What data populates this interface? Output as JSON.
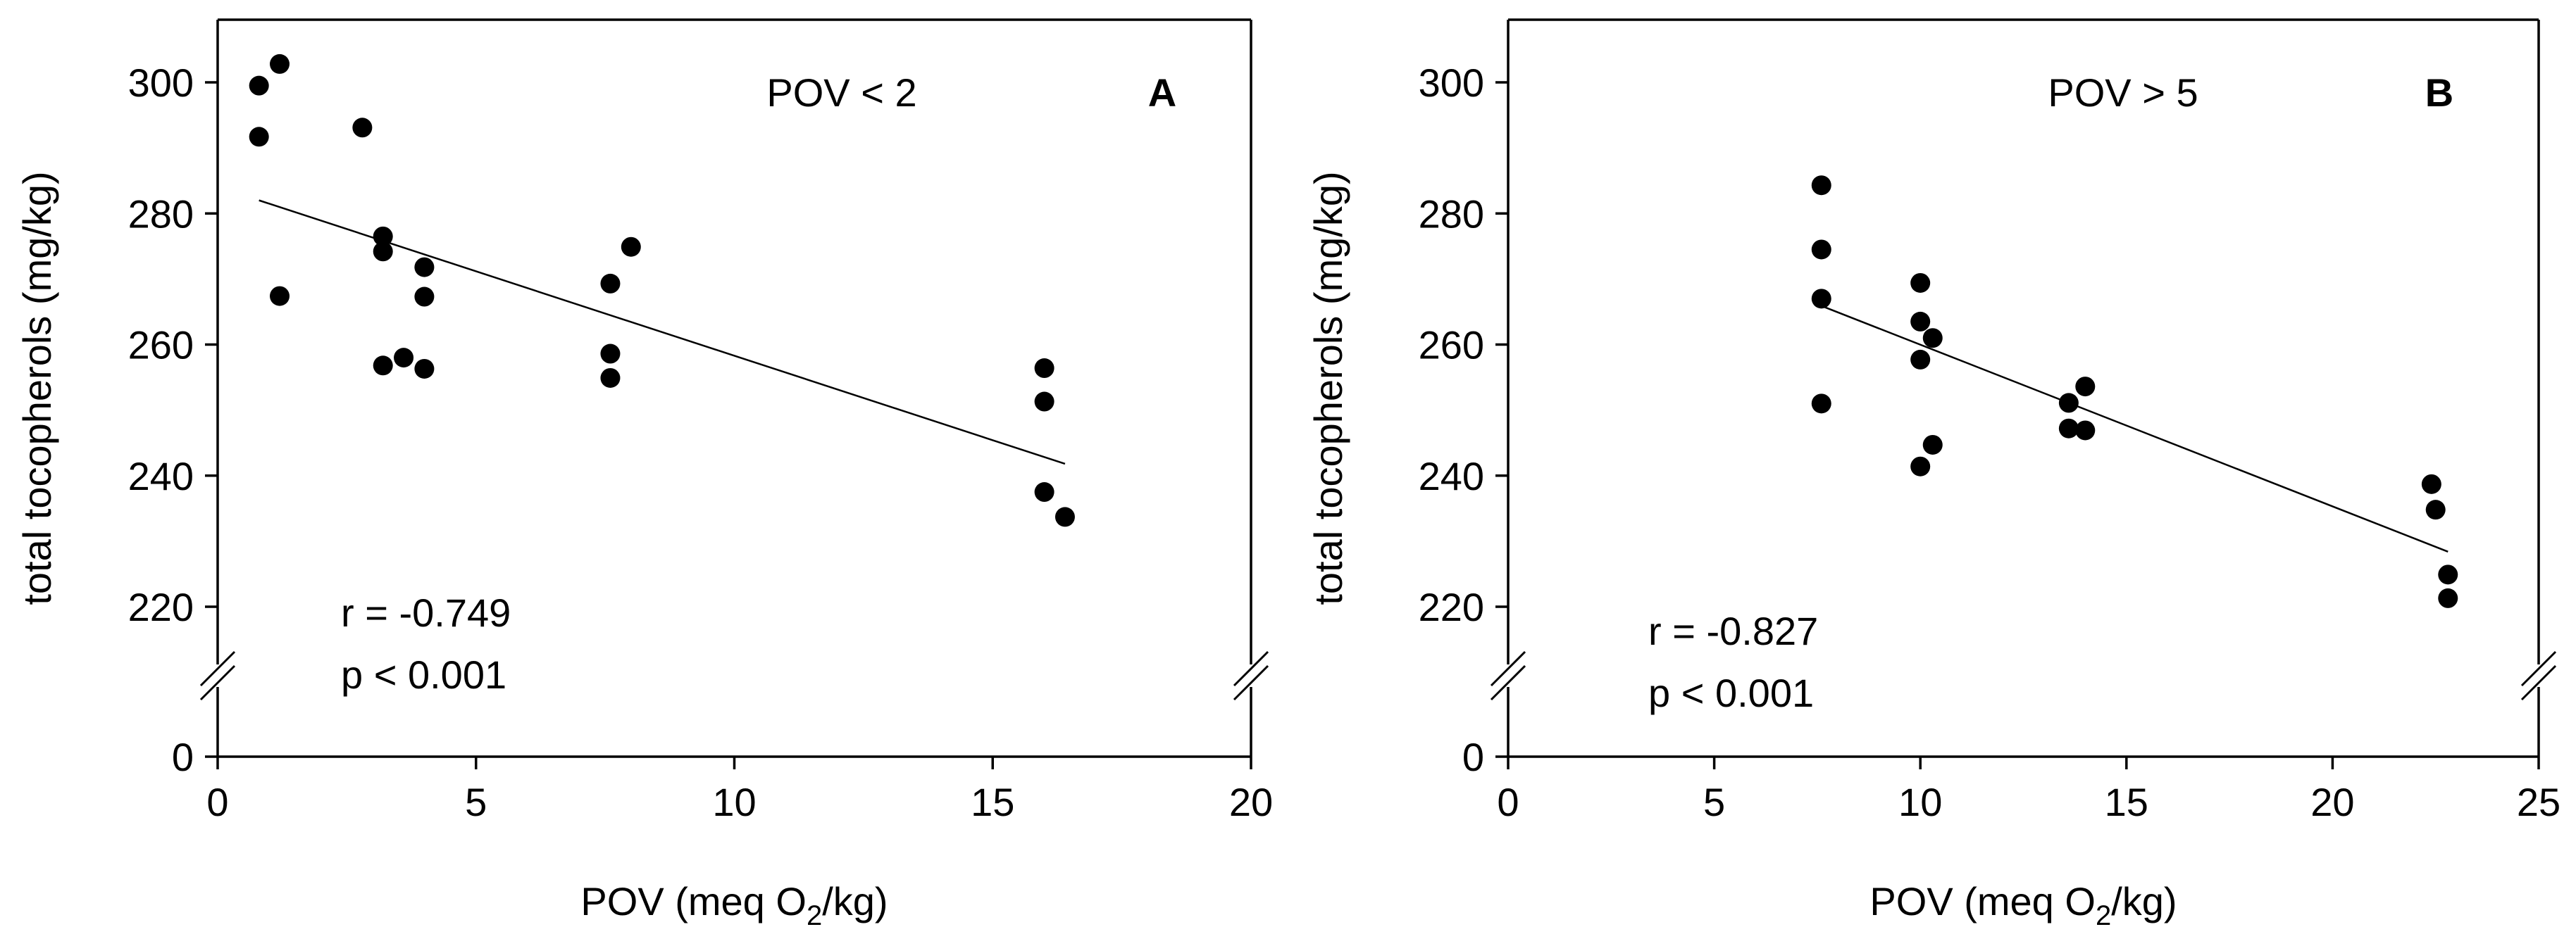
{
  "chart_data": [
    {
      "type": "scatter",
      "panel_label": "A",
      "condition": "POV < 2",
      "ylabel": "total tocopherols (mg/kg)",
      "xlabel": {
        "prefix": "POV (meq O",
        "subscript": "2",
        "suffix": "/kg)"
      },
      "xlim": [
        0,
        20
      ],
      "xticks": [
        "0",
        "5",
        "10",
        "15",
        "20"
      ],
      "ylim": [
        210,
        310
      ],
      "yticks": [
        "220",
        "240",
        "260",
        "280",
        "300"
      ],
      "yzero_label": "0",
      "stats": {
        "r": "r = -0.749",
        "p": "p < 0.001"
      },
      "points": [
        {
          "x": 0.8,
          "y": 299.5
        },
        {
          "x": 0.8,
          "y": 291.7
        },
        {
          "x": 1.2,
          "y": 302.8
        },
        {
          "x": 1.2,
          "y": 267.4
        },
        {
          "x": 2.8,
          "y": 293.1
        },
        {
          "x": 3.2,
          "y": 276.5
        },
        {
          "x": 3.2,
          "y": 274.2
        },
        {
          "x": 3.2,
          "y": 256.8
        },
        {
          "x": 3.6,
          "y": 258.0
        },
        {
          "x": 4.0,
          "y": 271.8
        },
        {
          "x": 4.0,
          "y": 267.3
        },
        {
          "x": 4.0,
          "y": 256.3
        },
        {
          "x": 7.6,
          "y": 269.3
        },
        {
          "x": 7.6,
          "y": 258.6
        },
        {
          "x": 7.6,
          "y": 254.9
        },
        {
          "x": 8.0,
          "y": 274.9
        },
        {
          "x": 16.0,
          "y": 256.4
        },
        {
          "x": 16.0,
          "y": 251.3
        },
        {
          "x": 16.0,
          "y": 237.5
        },
        {
          "x": 16.4,
          "y": 233.7
        }
      ],
      "fit": {
        "x1": 0.8,
        "y1": 282.0,
        "x2": 16.4,
        "y2": 241.8
      }
    },
    {
      "type": "scatter",
      "panel_label": "B",
      "condition": "POV > 5",
      "ylabel": "total tocopherols (mg/kg)",
      "xlabel": {
        "prefix": "POV (meq O",
        "subscript": "2",
        "suffix": "/kg)"
      },
      "xlim": [
        0,
        25
      ],
      "xticks": [
        "0",
        "5",
        "10",
        "15",
        "20",
        "25"
      ],
      "ylim": [
        210,
        310
      ],
      "yticks": [
        "220",
        "240",
        "260",
        "280",
        "300"
      ],
      "yzero_label": "0",
      "stats": {
        "r": "r = -0.827",
        "p": "p < 0.001"
      },
      "points": [
        {
          "x": 7.6,
          "y": 284.3
        },
        {
          "x": 7.6,
          "y": 274.5
        },
        {
          "x": 7.6,
          "y": 267.0
        },
        {
          "x": 7.6,
          "y": 251.0
        },
        {
          "x": 10.0,
          "y": 269.4
        },
        {
          "x": 10.0,
          "y": 263.5
        },
        {
          "x": 10.0,
          "y": 257.7
        },
        {
          "x": 10.0,
          "y": 241.4
        },
        {
          "x": 10.3,
          "y": 261.0
        },
        {
          "x": 10.3,
          "y": 244.7
        },
        {
          "x": 13.6,
          "y": 251.1
        },
        {
          "x": 13.6,
          "y": 247.2
        },
        {
          "x": 14.0,
          "y": 253.6
        },
        {
          "x": 14.0,
          "y": 246.9
        },
        {
          "x": 22.4,
          "y": 238.7
        },
        {
          "x": 22.5,
          "y": 234.8
        },
        {
          "x": 22.8,
          "y": 224.9
        },
        {
          "x": 22.8,
          "y": 221.3
        }
      ],
      "fit": {
        "x1": 7.6,
        "y1": 265.9,
        "x2": 22.8,
        "y2": 228.4
      }
    }
  ]
}
